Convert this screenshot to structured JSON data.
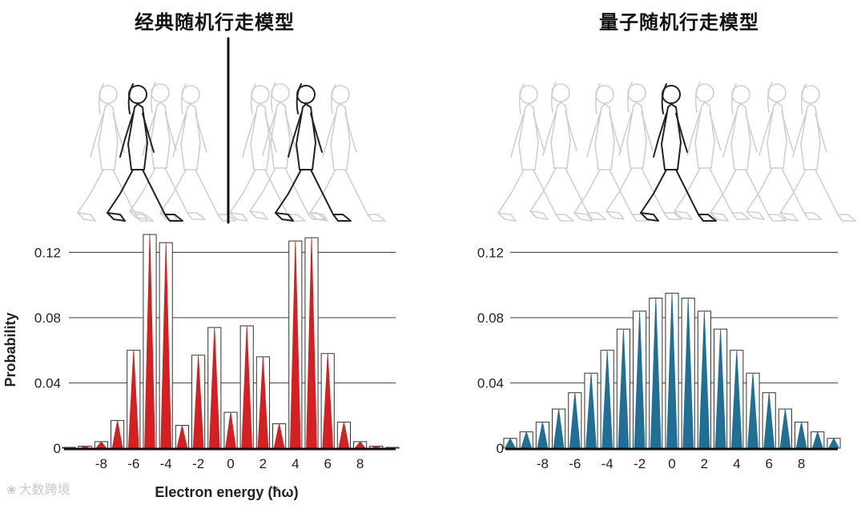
{
  "titles": {
    "left": "经典随机行走模型",
    "right": "量子随机行走模型"
  },
  "watermark": "大数跨境",
  "chart_data": [
    {
      "type": "bar",
      "ylabel": "Probability",
      "xlabel": "Electron energy (ħω)",
      "xlim": [
        -10,
        10
      ],
      "ylim": [
        0,
        0.13
      ],
      "yticks": [
        0,
        0.04,
        0.08,
        0.12
      ],
      "ytick_labels": [
        "0",
        "0.04",
        "0.08",
        "0.12"
      ],
      "xticks": [
        -8,
        -6,
        -4,
        -2,
        0,
        2,
        4,
        6,
        8
      ],
      "grid": true,
      "color": "#d42020",
      "x": [
        -10,
        -9,
        -8,
        -7,
        -6,
        -5,
        -4,
        -3,
        -2,
        -1,
        0,
        1,
        2,
        3,
        4,
        5,
        6,
        7,
        8,
        9,
        10
      ],
      "values": [
        0.0005,
        0.0012,
        0.004,
        0.017,
        0.06,
        0.131,
        0.126,
        0.014,
        0.057,
        0.074,
        0.022,
        0.075,
        0.056,
        0.015,
        0.127,
        0.129,
        0.058,
        0.016,
        0.004,
        0.0012,
        0.0005
      ]
    },
    {
      "type": "bar",
      "xlim": [
        -10,
        10
      ],
      "ylim": [
        0,
        0.13
      ],
      "yticks": [
        0,
        0.04,
        0.08,
        0.12
      ],
      "ytick_labels": [
        "0",
        "0.04",
        "0.08",
        "0.12"
      ],
      "xticks": [
        -8,
        -6,
        -4,
        -2,
        0,
        2,
        4,
        6,
        8
      ],
      "grid": true,
      "color": "#1f6f96",
      "x": [
        -10,
        -9,
        -8,
        -7,
        -6,
        -5,
        -4,
        -3,
        -2,
        -1,
        0,
        1,
        2,
        3,
        4,
        5,
        6,
        7,
        8,
        9,
        10
      ],
      "values": [
        0.006,
        0.01,
        0.016,
        0.024,
        0.034,
        0.046,
        0.06,
        0.073,
        0.084,
        0.092,
        0.095,
        0.092,
        0.084,
        0.073,
        0.06,
        0.046,
        0.034,
        0.024,
        0.016,
        0.01,
        0.006
      ]
    }
  ]
}
